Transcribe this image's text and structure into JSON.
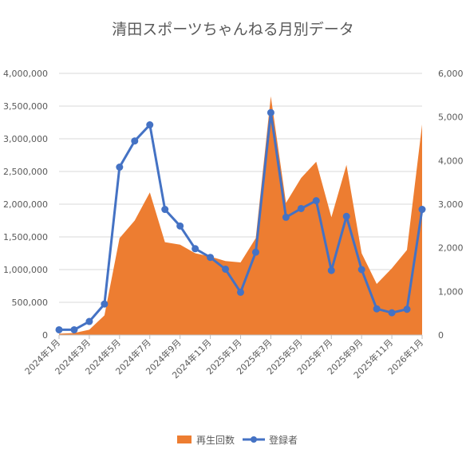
{
  "chart_data": {
    "type": "area+line",
    "title": "清田スポーツちゃんねる月別データ",
    "categories": [
      "2024年1月",
      "2024年2月",
      "2024年3月",
      "2024年4月",
      "2024年5月",
      "2024年6月",
      "2024年7月",
      "2024年8月",
      "2024年9月",
      "2024年10月",
      "2024年11月",
      "2024年12月",
      "2025年1月",
      "2025年2月",
      "2025年3月",
      "2025年4月",
      "2025年5月",
      "2025年6月",
      "2025年7月",
      "2025年8月",
      "2025年9月",
      "2025年10月",
      "2025年11月",
      "2025年12月",
      "2026年1月"
    ],
    "x_tick_labels": [
      "2024年1月",
      "2024年3月",
      "2024年5月",
      "2024年7月",
      "2024年9月",
      "2024年11月",
      "2025年1月",
      "2025年3月",
      "2025年5月",
      "2025年7月",
      "2025年9月",
      "2025年11月",
      "2026年1月"
    ],
    "series": [
      {
        "name": "再生回数",
        "type": "area",
        "axis": "left",
        "color": "#ED7D31",
        "values": [
          20000,
          30000,
          80000,
          300000,
          1480000,
          1750000,
          2180000,
          1420000,
          1380000,
          1250000,
          1200000,
          1130000,
          1110000,
          1480000,
          3650000,
          2020000,
          2400000,
          2650000,
          1800000,
          2600000,
          1250000,
          780000,
          1020000,
          1300000,
          3220000
        ]
      },
      {
        "name": "登録者",
        "type": "line",
        "axis": "right",
        "color": "#4472C4",
        "values": [
          120,
          120,
          310,
          710,
          3850,
          4450,
          4820,
          2880,
          2500,
          1980,
          1780,
          1510,
          980,
          1900,
          5100,
          2700,
          2900,
          3080,
          1480,
          2720,
          1500,
          600,
          510,
          590,
          2880
        ]
      }
    ],
    "y_left": {
      "min": 0,
      "max": 4000000,
      "ticks": [
        "0",
        "500,000",
        "1,000,000",
        "1,500,000",
        "2,000,000",
        "2,500,000",
        "3,000,000",
        "3,500,000",
        "4,000,000"
      ]
    },
    "y_right": {
      "min": 0,
      "max": 6000,
      "ticks": [
        "0",
        "1,000",
        "2,000",
        "3,000",
        "4,000",
        "5,000",
        "6,000"
      ]
    },
    "grid": true,
    "legend_position": "bottom"
  }
}
